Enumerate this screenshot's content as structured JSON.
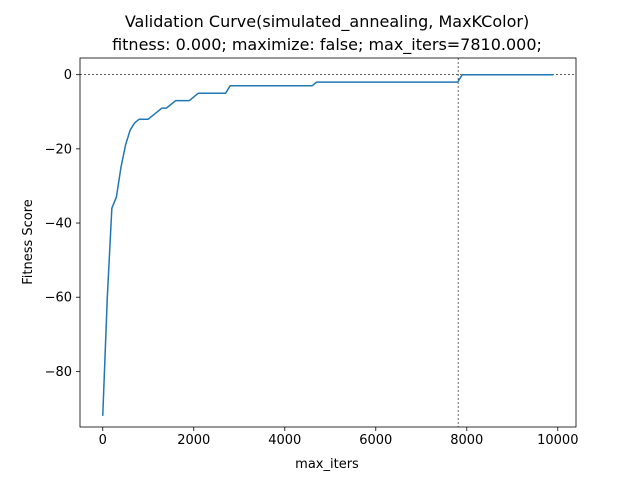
{
  "chart_data": {
    "type": "line",
    "title_line1": "Validation Curve(simulated_annealing, MaxKColor)",
    "title_line2": "fitness: 0.000; maximize: false; max_iters=7810.000;",
    "xlabel": "max_iters",
    "ylabel": "Fitness Score",
    "xlim": [
      -500,
      10400
    ],
    "ylim": [
      -95,
      4.5
    ],
    "x_ticks": [
      0,
      2000,
      4000,
      6000,
      8000,
      10000
    ],
    "x_tick_labels": [
      "0",
      "2000",
      "4000",
      "6000",
      "8000",
      "10000"
    ],
    "y_ticks": [
      0,
      -20,
      -40,
      -60,
      -80
    ],
    "y_tick_labels": [
      "0",
      "−20",
      "−40",
      "−60",
      "−80"
    ],
    "grid": false,
    "line_color": "#1f77b4",
    "reference_lines": {
      "horizontal_y": 0,
      "vertical_x": 7810
    },
    "series": [
      {
        "x": [
          0,
          100,
          200,
          300,
          400,
          500,
          600,
          700,
          800,
          900,
          1000,
          1100,
          1200,
          1300,
          1400,
          1500,
          1600,
          1700,
          1800,
          1900,
          2000,
          2100,
          2200,
          2300,
          2400,
          2500,
          2600,
          2700,
          2800,
          2900,
          3000,
          3500,
          4000,
          4500,
          4600,
          4700,
          5000,
          6000,
          7000,
          7700,
          7800,
          7900,
          8000,
          9000,
          9900
        ],
        "y": [
          -92,
          -60,
          -36,
          -33,
          -25,
          -19,
          -15,
          -13,
          -12,
          -12,
          -12,
          -11,
          -10,
          -9,
          -9,
          -8,
          -7,
          -7,
          -7,
          -7,
          -6,
          -5,
          -5,
          -5,
          -5,
          -5,
          -5,
          -5,
          -3,
          -3,
          -3,
          -3,
          -3,
          -3,
          -3,
          -2,
          -2,
          -2,
          -2,
          -2,
          -2,
          0,
          0,
          0,
          0
        ]
      }
    ]
  }
}
